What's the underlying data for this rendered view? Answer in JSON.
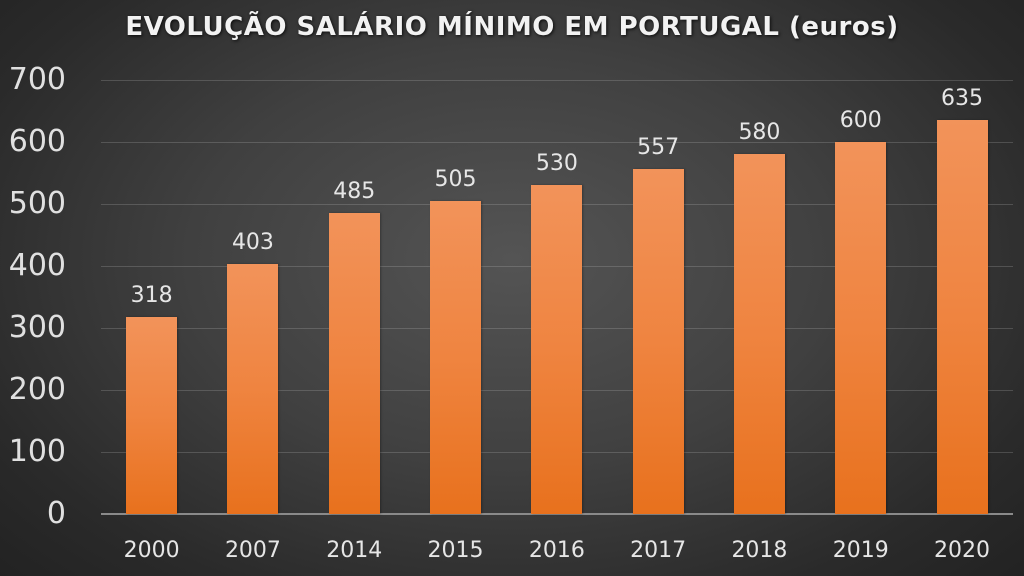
{
  "chart_data": {
    "type": "bar",
    "title": "EVOLUÇÃO SALÁRIO MÍNIMO EM PORTUGAL (euros)",
    "categories": [
      "2000",
      "2007",
      "2014",
      "2015",
      "2016",
      "2017",
      "2018",
      "2019",
      "2020"
    ],
    "values": [
      318,
      403,
      485,
      505,
      530,
      557,
      580,
      600,
      635
    ],
    "data_labels": [
      "318",
      "403",
      "485",
      "505",
      "530",
      "557",
      "580",
      "600",
      "635"
    ],
    "xlabel": "",
    "ylabel": "",
    "ylim": [
      0,
      700
    ],
    "yticks": [
      "0",
      "100",
      "200",
      "300",
      "400",
      "500",
      "600",
      "700"
    ],
    "grid": true,
    "legend": "none",
    "colors": {
      "bar_top": "#F2935A",
      "bar_bottom": "#E8711D",
      "background": "#3A3A3A"
    }
  }
}
